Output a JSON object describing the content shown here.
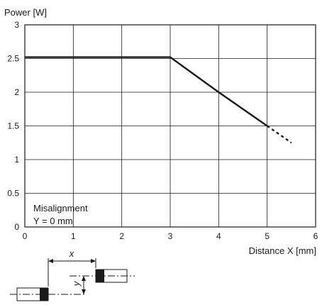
{
  "chart_data": {
    "type": "line",
    "title": "",
    "ylabel": "Power [W]",
    "xlabel": "Distance X [mm]",
    "xlim": [
      0,
      6
    ],
    "ylim": [
      0,
      3
    ],
    "x_ticks": [
      0,
      1,
      2,
      3,
      4,
      5,
      6
    ],
    "y_ticks": [
      0,
      0.5,
      1,
      1.5,
      2,
      2.5,
      3
    ],
    "grid": true,
    "legend": "none",
    "series": [
      {
        "style": "solid",
        "color": "#1a1a1a",
        "points": [
          [
            0,
            2.52
          ],
          [
            3,
            2.52
          ],
          [
            4,
            2.0
          ],
          [
            5,
            1.5
          ]
        ]
      },
      {
        "style": "dotted",
        "color": "#1a1a1a",
        "points": [
          [
            5,
            1.5
          ],
          [
            5.5,
            1.25
          ]
        ]
      }
    ],
    "annotations": [
      {
        "text": "Misalignment",
        "position": "bottom-left"
      },
      {
        "text": "Y = 0 mm",
        "position": "bottom-left"
      }
    ]
  },
  "diagram": {
    "x_label": "x",
    "y_label": "y"
  }
}
